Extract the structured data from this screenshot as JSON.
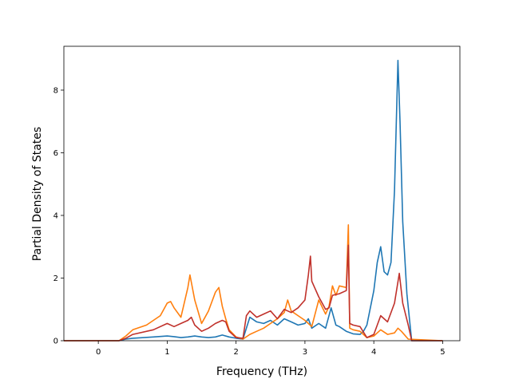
{
  "chart_data": {
    "type": "line",
    "xlabel": "Frequency (THz)",
    "ylabel": "Partial Density of States",
    "xlim": [
      -0.5,
      5.25
    ],
    "ylim": [
      0,
      9.4
    ],
    "xticks": [
      0,
      1,
      2,
      3,
      4,
      5
    ],
    "yticks": [
      0,
      2,
      4,
      6,
      8
    ],
    "grid": false,
    "series": [
      {
        "color": "#1f77b4",
        "x": [
          -0.5,
          0.3,
          0.4,
          0.5,
          0.8,
          1.0,
          1.1,
          1.2,
          1.3,
          1.4,
          1.5,
          1.6,
          1.7,
          1.8,
          1.9,
          2.0,
          2.1,
          2.15,
          2.2,
          2.3,
          2.4,
          2.5,
          2.6,
          2.7,
          2.8,
          2.9,
          3.0,
          3.05,
          3.1,
          3.2,
          3.3,
          3.38,
          3.45,
          3.5,
          3.6,
          3.7,
          3.8,
          3.85,
          3.9,
          4.0,
          4.05,
          4.1,
          4.15,
          4.2,
          4.25,
          4.3,
          4.35,
          4.38,
          4.42,
          4.48,
          4.55,
          5.0
        ],
        "y": [
          0,
          0,
          0.05,
          0.08,
          0.12,
          0.15,
          0.13,
          0.1,
          0.12,
          0.15,
          0.12,
          0.1,
          0.12,
          0.18,
          0.12,
          0.08,
          0.05,
          0.4,
          0.75,
          0.6,
          0.55,
          0.65,
          0.5,
          0.7,
          0.6,
          0.5,
          0.55,
          0.7,
          0.4,
          0.55,
          0.4,
          1.05,
          0.5,
          0.45,
          0.3,
          0.22,
          0.2,
          0.3,
          0.5,
          1.6,
          2.5,
          3.0,
          2.2,
          2.1,
          2.5,
          4.8,
          8.95,
          7.0,
          3.8,
          1.5,
          0,
          0
        ]
      },
      {
        "color": "#ff7f0e",
        "x": [
          -0.5,
          0.3,
          0.4,
          0.5,
          0.7,
          0.9,
          1.0,
          1.05,
          1.1,
          1.2,
          1.3,
          1.33,
          1.4,
          1.5,
          1.6,
          1.7,
          1.75,
          1.8,
          1.85,
          1.9,
          2.0,
          2.1,
          2.2,
          2.3,
          2.4,
          2.5,
          2.6,
          2.7,
          2.75,
          2.8,
          2.9,
          3.0,
          3.1,
          3.2,
          3.3,
          3.35,
          3.4,
          3.45,
          3.5,
          3.6,
          3.63,
          3.65,
          3.7,
          3.8,
          3.9,
          4.0,
          4.1,
          4.2,
          4.3,
          4.35,
          4.4,
          4.5,
          5.0
        ],
        "y": [
          0,
          0,
          0.15,
          0.35,
          0.5,
          0.8,
          1.2,
          1.25,
          1.05,
          0.75,
          1.7,
          2.1,
          1.3,
          0.55,
          0.95,
          1.55,
          1.7,
          1.1,
          0.7,
          0.35,
          0.12,
          0.05,
          0.2,
          0.3,
          0.4,
          0.55,
          0.7,
          0.9,
          1.3,
          0.95,
          0.8,
          0.65,
          0.45,
          1.3,
          0.85,
          1.1,
          1.75,
          1.45,
          1.75,
          1.7,
          3.7,
          0.4,
          0.35,
          0.3,
          0.1,
          0.15,
          0.35,
          0.2,
          0.25,
          0.4,
          0.3,
          0.05,
          0
        ]
      },
      {
        "color": "#c0312b",
        "x": [
          -0.5,
          0.3,
          0.4,
          0.5,
          0.8,
          1.0,
          1.1,
          1.2,
          1.3,
          1.35,
          1.4,
          1.5,
          1.6,
          1.7,
          1.8,
          1.85,
          1.9,
          2.0,
          2.1,
          2.15,
          2.2,
          2.3,
          2.4,
          2.5,
          2.6,
          2.7,
          2.8,
          2.9,
          3.0,
          3.05,
          3.08,
          3.1,
          3.2,
          3.3,
          3.35,
          3.4,
          3.5,
          3.6,
          3.63,
          3.65,
          3.7,
          3.8,
          3.9,
          4.0,
          4.1,
          4.2,
          4.3,
          4.37,
          4.42,
          4.5,
          4.55,
          5.0
        ],
        "y": [
          0,
          0,
          0.08,
          0.2,
          0.35,
          0.55,
          0.45,
          0.55,
          0.65,
          0.75,
          0.5,
          0.3,
          0.4,
          0.55,
          0.65,
          0.6,
          0.3,
          0.1,
          0.08,
          0.8,
          0.95,
          0.75,
          0.85,
          0.95,
          0.7,
          1.0,
          0.9,
          1.05,
          1.3,
          2.1,
          2.7,
          1.9,
          1.4,
          1.0,
          1.05,
          1.45,
          1.5,
          1.6,
          3.05,
          0.55,
          0.5,
          0.45,
          0.1,
          0.2,
          0.8,
          0.6,
          1.2,
          2.15,
          1.2,
          0.5,
          0,
          0
        ]
      }
    ]
  }
}
